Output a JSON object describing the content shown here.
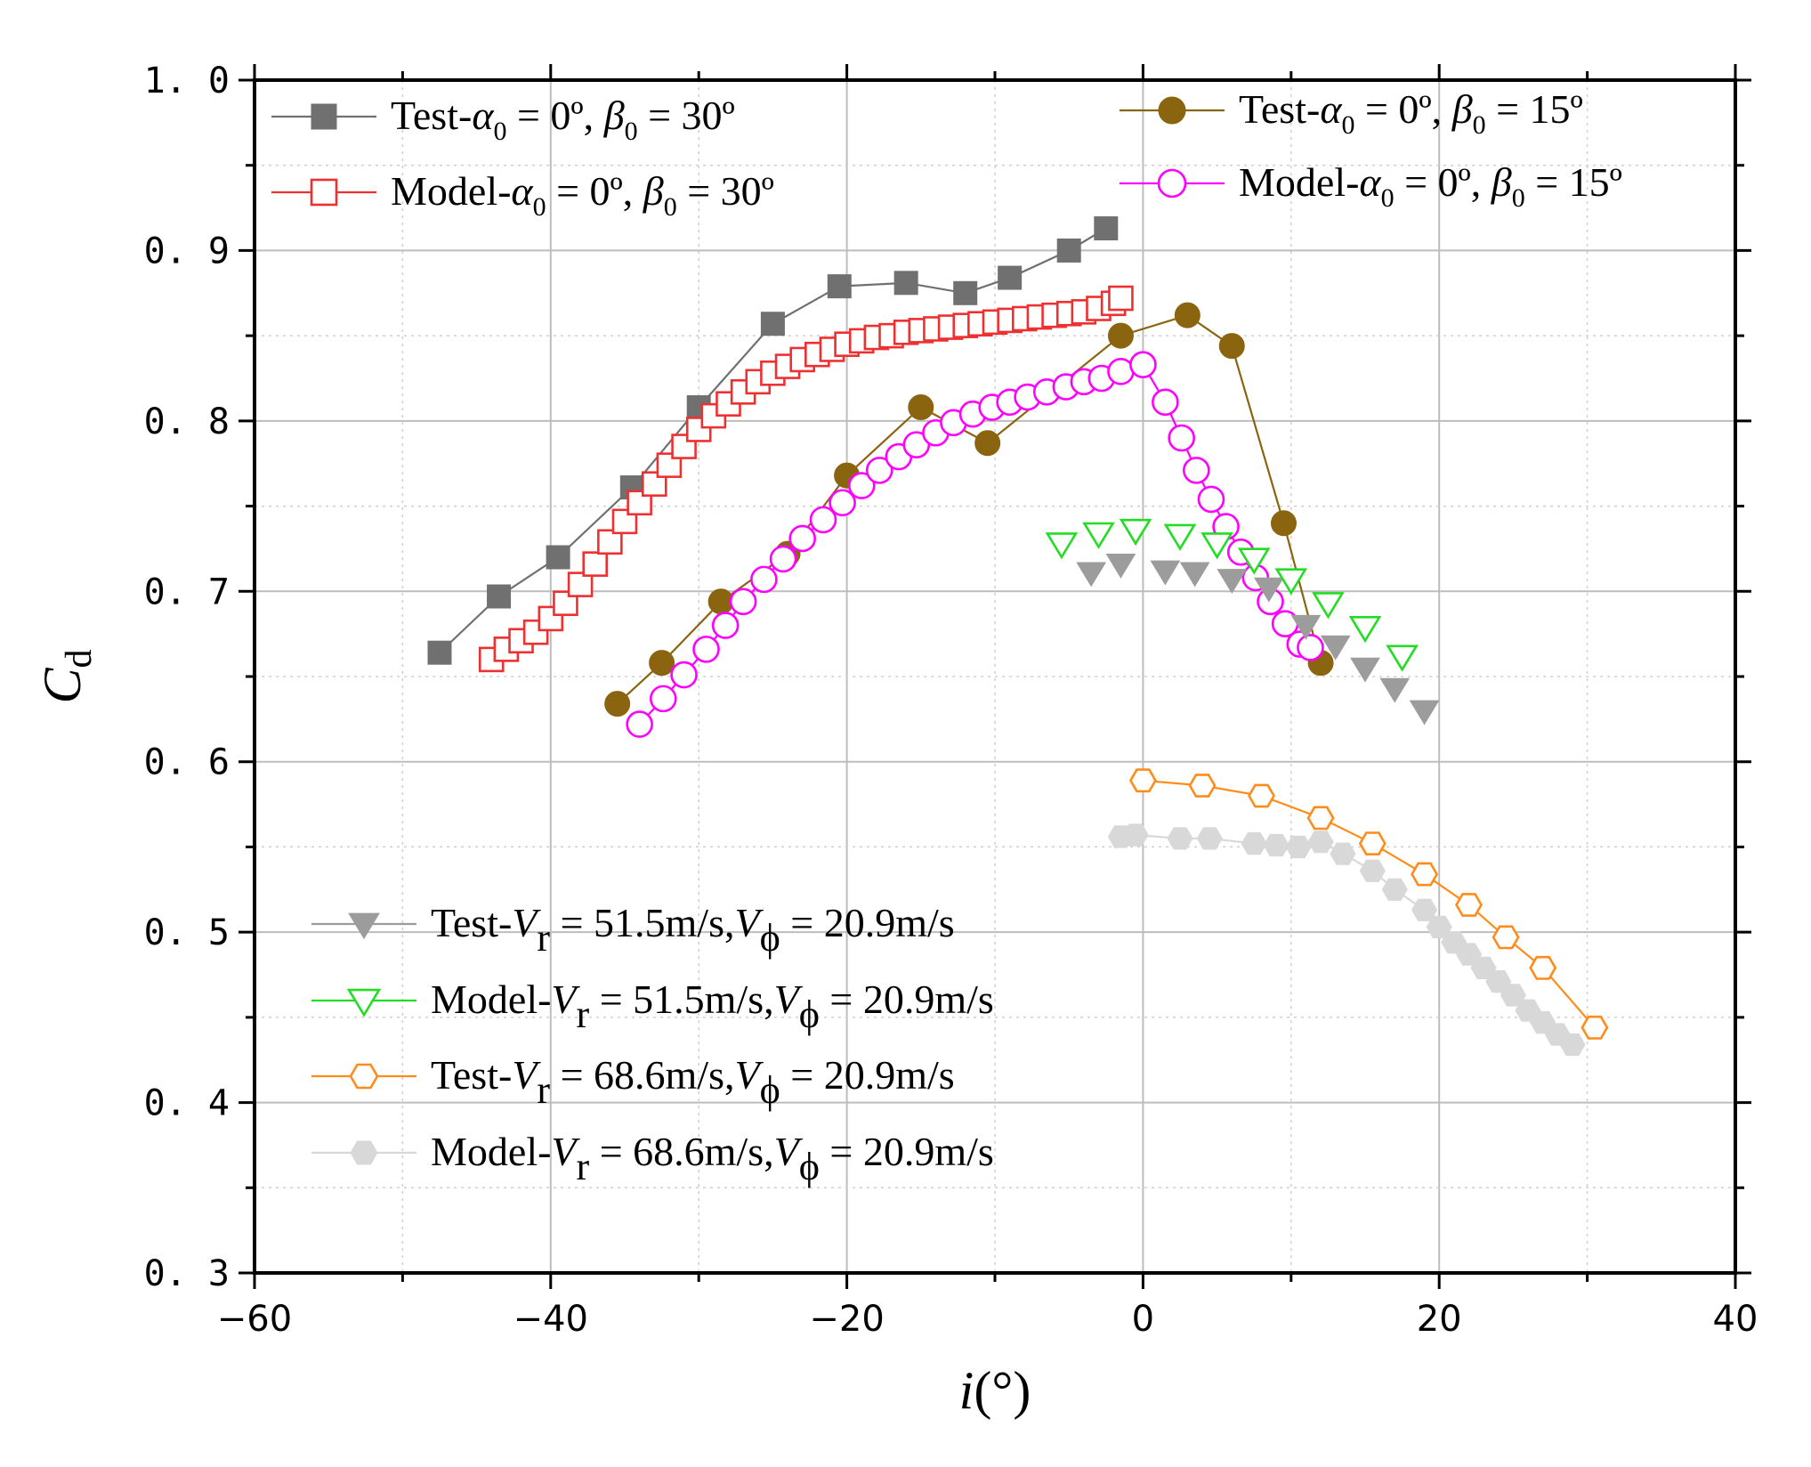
{
  "chart_data": {
    "type": "line",
    "title": "",
    "xlabel": "i(°)",
    "ylabel": "Cd",
    "xlim": [
      -60,
      40
    ],
    "ylim": [
      0.3,
      1.0
    ],
    "xticks": [
      "−60",
      "−40",
      "−20",
      "0",
      "20",
      "40"
    ],
    "xtick_values": [
      -60,
      -40,
      -20,
      0,
      20,
      40
    ],
    "yticks": [
      "0. 3",
      "0. 4",
      "0. 5",
      "0. 6",
      "0. 7",
      "0. 8",
      "0. 9",
      "1. 0"
    ],
    "ytick_values": [
      0.3,
      0.4,
      0.5,
      0.6,
      0.7,
      0.8,
      0.9,
      1.0
    ],
    "grid": true,
    "series": [
      {
        "name": "Test-α0 = 0º, β0 = 30º",
        "marker": "square-filled",
        "color": "#707070",
        "line": true,
        "x": [
          -47.5,
          -43.5,
          -39.5,
          -34.5,
          -30,
          -25,
          -20.5,
          -16,
          -12,
          -9,
          -5,
          -2.5
        ],
        "y": [
          0.664,
          0.697,
          0.72,
          0.761,
          0.808,
          0.857,
          0.879,
          0.881,
          0.875,
          0.884,
          0.9,
          0.913
        ]
      },
      {
        "name": "Model-α0 = 0º, β0 = 30º",
        "marker": "square-open",
        "color": "#ee3030",
        "line": true,
        "x": [
          -44,
          -43,
          -42,
          -41,
          -40,
          -39,
          -38,
          -37,
          -36,
          -35,
          -34,
          -33,
          -32,
          -31,
          -30,
          -29,
          -28,
          -27,
          -26,
          -25,
          -24,
          -23,
          -22,
          -21,
          -20,
          -19,
          -18,
          -17,
          -16,
          -15,
          -14,
          -13,
          -12,
          -11,
          -10,
          -9,
          -8,
          -7,
          -6,
          -5,
          -4,
          -3,
          -2,
          -1.5
        ],
        "y": [
          0.66,
          0.666,
          0.671,
          0.676,
          0.684,
          0.693,
          0.704,
          0.716,
          0.729,
          0.741,
          0.752,
          0.763,
          0.774,
          0.785,
          0.795,
          0.803,
          0.81,
          0.817,
          0.823,
          0.828,
          0.832,
          0.836,
          0.839,
          0.842,
          0.845,
          0.847,
          0.849,
          0.85,
          0.852,
          0.853,
          0.854,
          0.855,
          0.856,
          0.857,
          0.858,
          0.859,
          0.86,
          0.861,
          0.862,
          0.863,
          0.864,
          0.866,
          0.869,
          0.872
        ]
      },
      {
        "name": "Test-α0 = 0º, β0 = 15º",
        "marker": "circle-filled",
        "color": "#8b6410",
        "line": true,
        "x": [
          -35.5,
          -32.5,
          -28.5,
          -24,
          -20,
          -15,
          -10.5,
          -1.5,
          3,
          6,
          9.5,
          12
        ],
        "y": [
          0.634,
          0.658,
          0.694,
          0.722,
          0.768,
          0.808,
          0.787,
          0.85,
          0.862,
          0.844,
          0.74,
          0.658
        ]
      },
      {
        "name": "Model-α0 = 0º, β0 = 15º",
        "marker": "circle-open",
        "color": "#ff00ff",
        "line": true,
        "x": [
          -34,
          -32.4,
          -31,
          -29.5,
          -28.2,
          -27,
          -25.6,
          -24.3,
          -23,
          -21.6,
          -20.3,
          -19,
          -17.8,
          -16.5,
          -15.3,
          -14,
          -12.8,
          -11.5,
          -10.2,
          -9,
          -7.8,
          -6.5,
          -5.2,
          -4,
          -2.8,
          -1.5,
          0,
          1.5,
          2.6,
          3.6,
          4.6,
          5.6,
          6.6,
          7.6,
          8.6,
          9.6,
          10.6,
          11.3
        ],
        "y": [
          0.622,
          0.637,
          0.651,
          0.666,
          0.68,
          0.694,
          0.707,
          0.719,
          0.731,
          0.742,
          0.752,
          0.762,
          0.771,
          0.779,
          0.786,
          0.793,
          0.799,
          0.804,
          0.808,
          0.811,
          0.814,
          0.817,
          0.82,
          0.823,
          0.825,
          0.829,
          0.833,
          0.811,
          0.79,
          0.771,
          0.754,
          0.738,
          0.723,
          0.708,
          0.694,
          0.681,
          0.669,
          0.667
        ]
      },
      {
        "name": "Test-Vr = 51.5m/s,Vϕ = 20.9m/s",
        "marker": "triangle-down-filled",
        "color": "#9c9c9c",
        "line": false,
        "x": [
          -3.5,
          -1.5,
          1.5,
          3.5,
          6,
          8.5,
          11,
          13,
          15,
          17,
          19
        ],
        "y": [
          0.711,
          0.716,
          0.712,
          0.711,
          0.707,
          0.702,
          0.68,
          0.668,
          0.655,
          0.643,
          0.63
        ]
      },
      {
        "name": "Model-Vr = 51.5m/s,Vϕ = 20.9m/s",
        "marker": "triangle-down-open",
        "color": "#22dd22",
        "line": false,
        "x": [
          -5.5,
          -3,
          -0.5,
          2.5,
          5,
          7.5,
          10,
          12.5,
          15,
          17.5
        ],
        "y": [
          0.728,
          0.734,
          0.736,
          0.733,
          0.728,
          0.719,
          0.707,
          0.693,
          0.679,
          0.662
        ]
      },
      {
        "name": "Test-Vr = 68.6m/s,Vϕ = 20.9m/s",
        "marker": "hexagon-open",
        "color": "#ff8c1a",
        "line": true,
        "x": [
          0,
          4,
          8,
          12,
          15.5,
          19,
          22,
          24.5,
          27,
          30.5
        ],
        "y": [
          0.589,
          0.586,
          0.58,
          0.567,
          0.552,
          0.534,
          0.516,
          0.497,
          0.479,
          0.444
        ]
      },
      {
        "name": "Model-Vr = 68.6m/s,Vϕ = 20.9m/s",
        "marker": "hexagon-filled",
        "color": "#d8d8d8",
        "line": true,
        "x": [
          -1.5,
          -0.5,
          2.5,
          4.5,
          7.5,
          9,
          10.5,
          12,
          13.5,
          15.5,
          17,
          19,
          20,
          21,
          22,
          23,
          24,
          25,
          26,
          27,
          28,
          29
        ],
        "y": [
          0.556,
          0.557,
          0.555,
          0.555,
          0.552,
          0.551,
          0.55,
          0.553,
          0.546,
          0.536,
          0.525,
          0.513,
          0.503,
          0.494,
          0.487,
          0.479,
          0.471,
          0.463,
          0.454,
          0.447,
          0.44,
          0.434
        ]
      }
    ],
    "legend": [
      {
        "pre": "Test-",
        "var": "α",
        "sub": "0",
        "mid": " = 0º, ",
        "var2": "β",
        "sub2": "0",
        "post": " = 30º"
      },
      {
        "pre": "Model-",
        "var": "α",
        "sub": "0",
        "mid": " = 0º, ",
        "var2": "β",
        "sub2": "0",
        "post": " = 30º"
      },
      {
        "pre": "Test-",
        "var": "α",
        "sub": "0",
        "mid": " = 0º, ",
        "var2": "β",
        "sub2": "0",
        "post": " = 15º"
      },
      {
        "pre": "Model-",
        "var": "α",
        "sub": "0",
        "mid": " = 0º, ",
        "var2": "β",
        "sub2": "0",
        "post": " = 15º"
      },
      {
        "pre": "Test-",
        "var": "V",
        "sub": "r",
        "mid": " = 51.5m/s,",
        "var2": "V",
        "sub2": "ϕ",
        "post": " = 20.9m/s"
      },
      {
        "pre": "Model-",
        "var": "V",
        "sub": "r",
        "mid": " = 51.5m/s,",
        "var2": "V",
        "sub2": "ϕ",
        "post": " = 20.9m/s"
      },
      {
        "pre": "Test-",
        "var": "V",
        "sub": "r",
        "mid": " = 68.6m/s,",
        "var2": "V",
        "sub2": "ϕ",
        "post": " = 20.9m/s"
      },
      {
        "pre": "Model-",
        "var": "V",
        "sub": "r",
        "mid": " = 68.6m/s,",
        "var2": "V",
        "sub2": "ϕ",
        "post": " = 20.9m/s"
      }
    ],
    "axis_title_parts": {
      "x_var": "i",
      "x_unit": "(°)",
      "y_var": "C",
      "y_sub": "d"
    }
  }
}
